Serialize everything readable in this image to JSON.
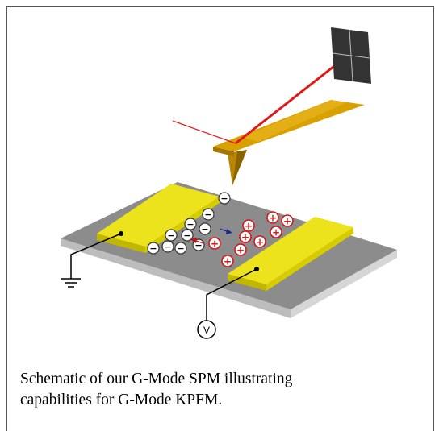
{
  "caption": {
    "line1": "Schematic of our G-Mode SPM illustrating",
    "line2": "capabilities for G-Mode KPFM."
  },
  "labels": {
    "voltage_source": "V",
    "negative_sign": "−",
    "positive_sign": "+"
  },
  "colors": {
    "substrate_top": "#8a8a8a",
    "substrate_side": "#c9c9c9",
    "electrode": "#e8df1a",
    "electrode_side": "#bfb400",
    "cantilever": "#d9a100",
    "laser": "#e01818",
    "detector": "#3a3a3a",
    "positive_charge": "#e02020",
    "negative_charge": "#ffffff"
  },
  "charges": {
    "negative_count": 10,
    "positive_count": 9
  }
}
